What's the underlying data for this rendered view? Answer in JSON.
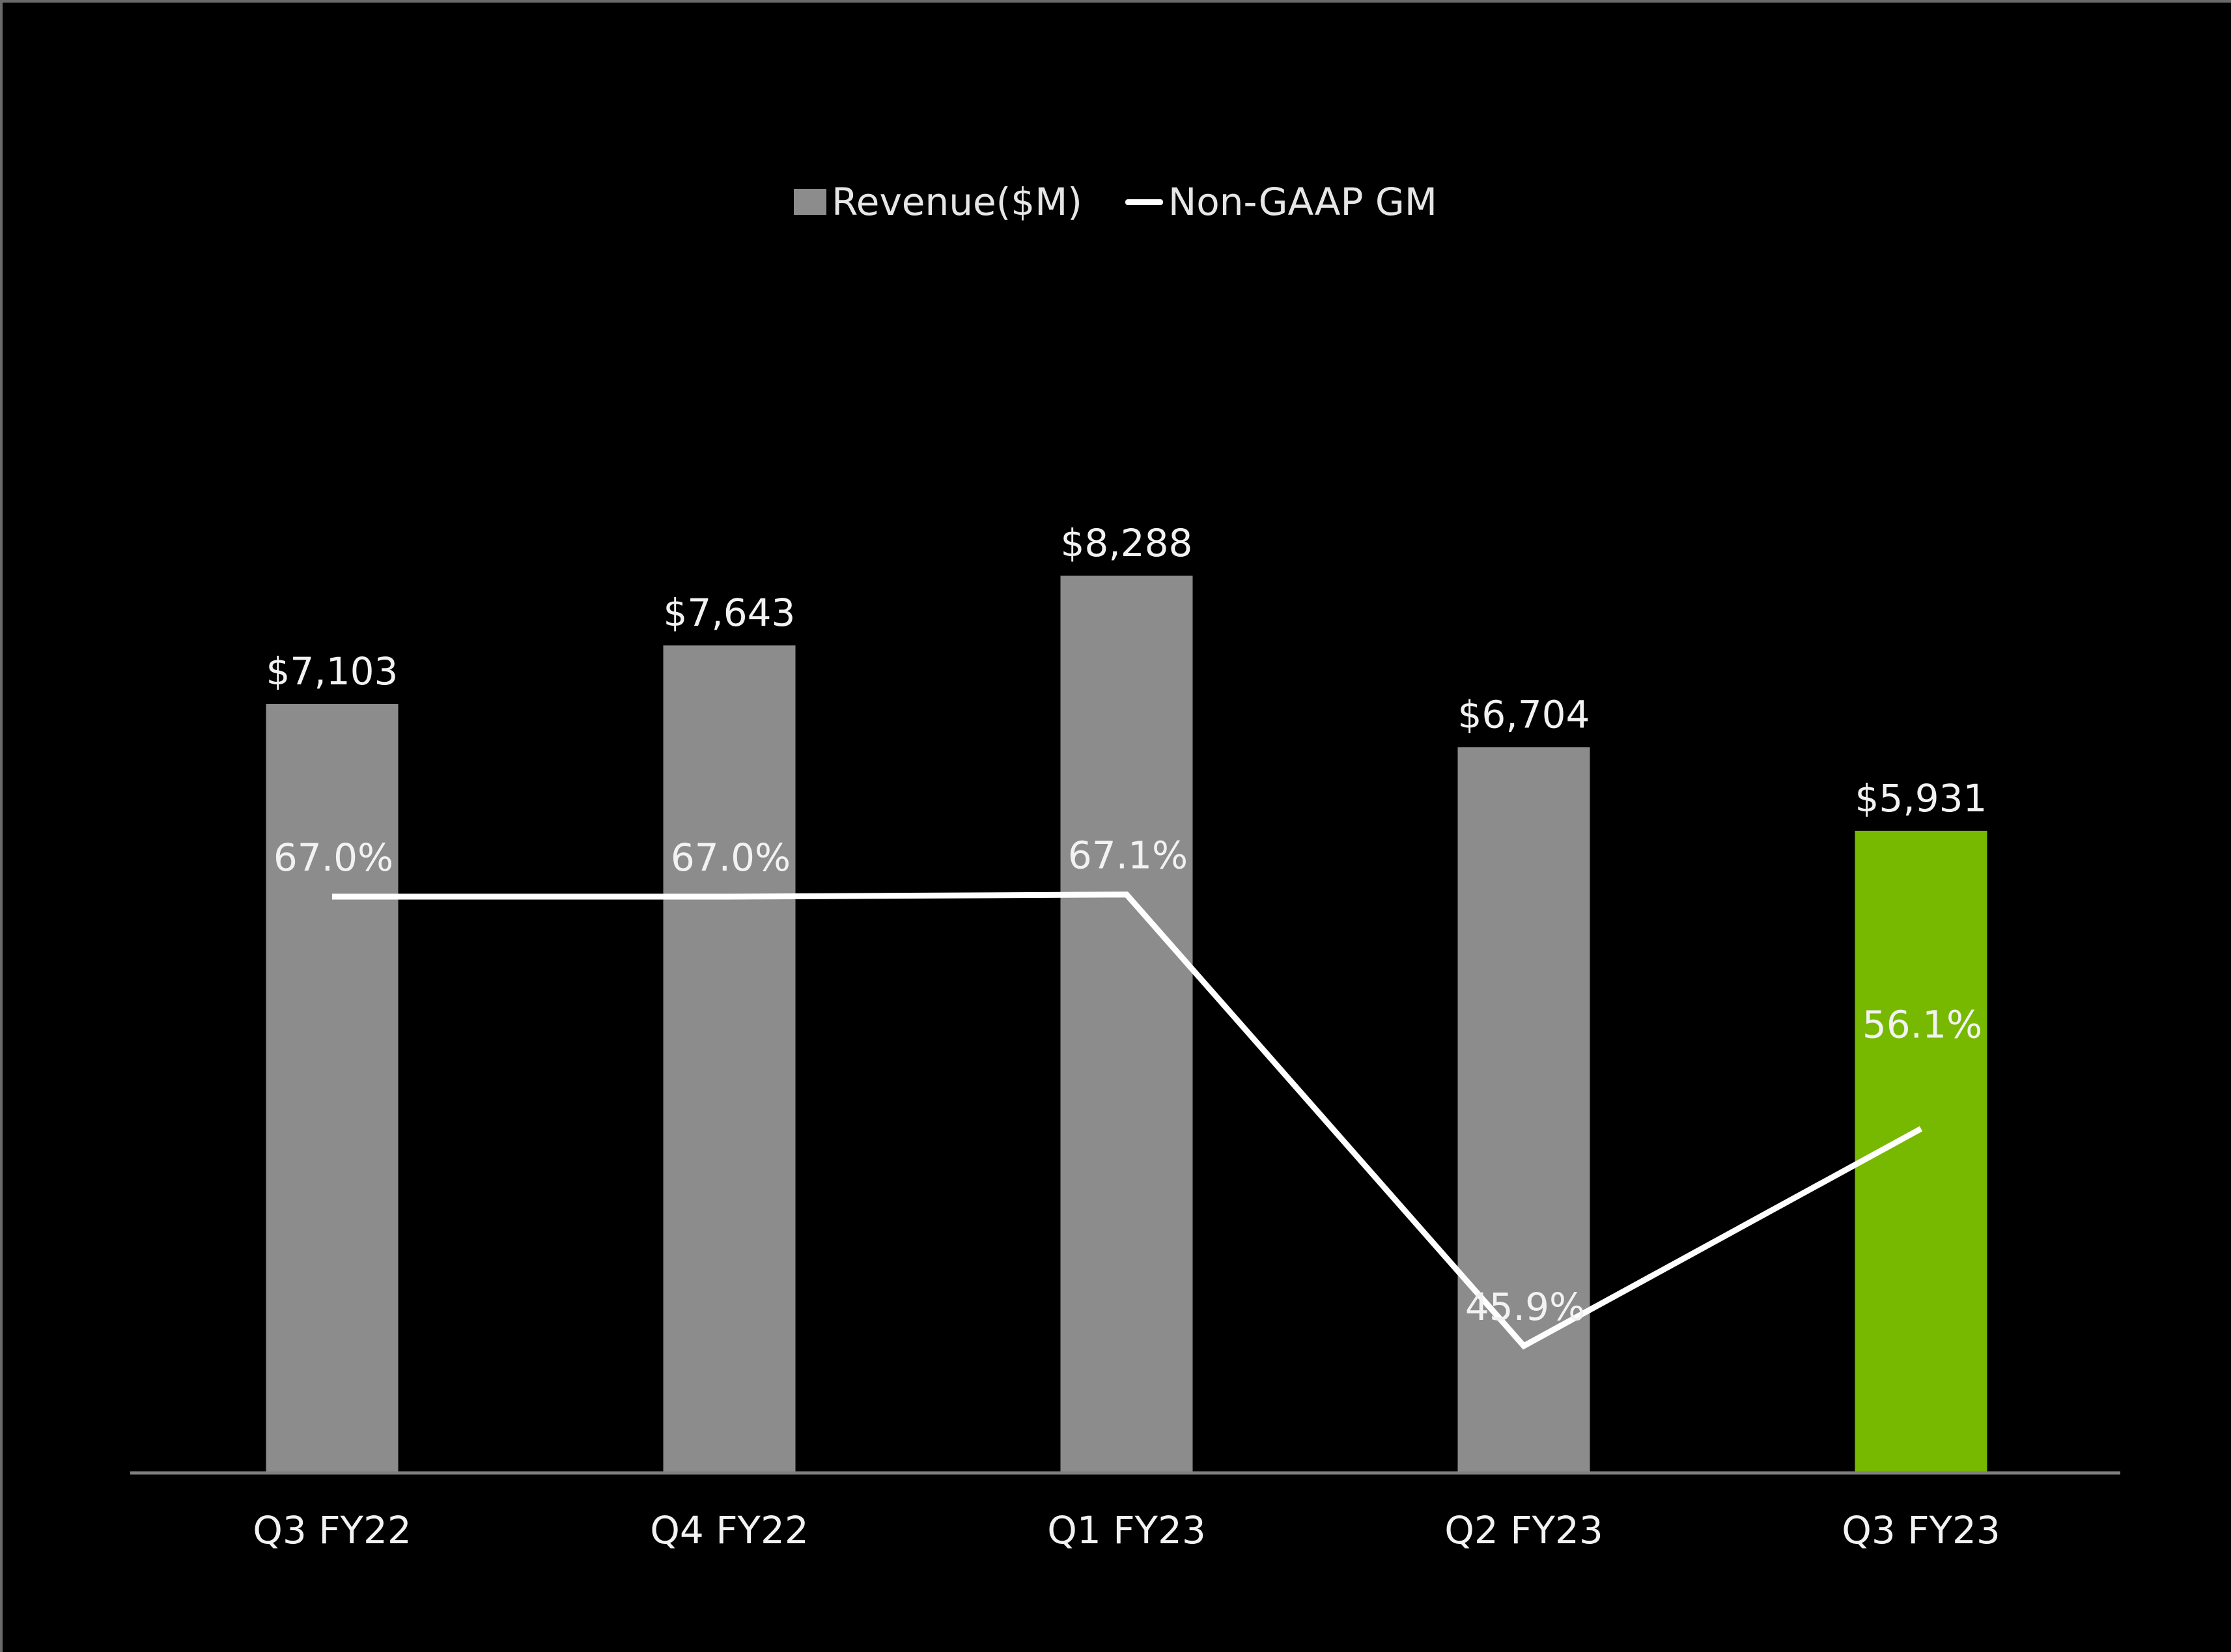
{
  "chart_data": {
    "type": "bar",
    "categories": [
      "Q3 FY22",
      "Q4 FY22",
      "Q1 FY23",
      "Q2 FY23",
      "Q3 FY23"
    ],
    "series": [
      {
        "name": "Revenue($M)",
        "type": "bar",
        "values": [
          7103,
          7643,
          8288,
          6704,
          5931
        ],
        "labels": [
          "$7,103",
          "$7,643",
          "$8,288",
          "$6,704",
          "$5,931"
        ],
        "color": "#8c8c8c",
        "highlight_color": "#76b900",
        "highlight_index": 4
      },
      {
        "name": "Non-GAAP GM",
        "type": "line",
        "values": [
          67.0,
          67.0,
          67.1,
          45.9,
          56.1
        ],
        "labels": [
          "67.0%",
          "67.0%",
          "67.1%",
          "45.9%",
          "56.1%"
        ],
        "color": "#ffffff"
      }
    ],
    "legend": {
      "position": "top-center"
    },
    "grid": false,
    "axis_color": "#7f7f7f",
    "background": "#000000"
  }
}
